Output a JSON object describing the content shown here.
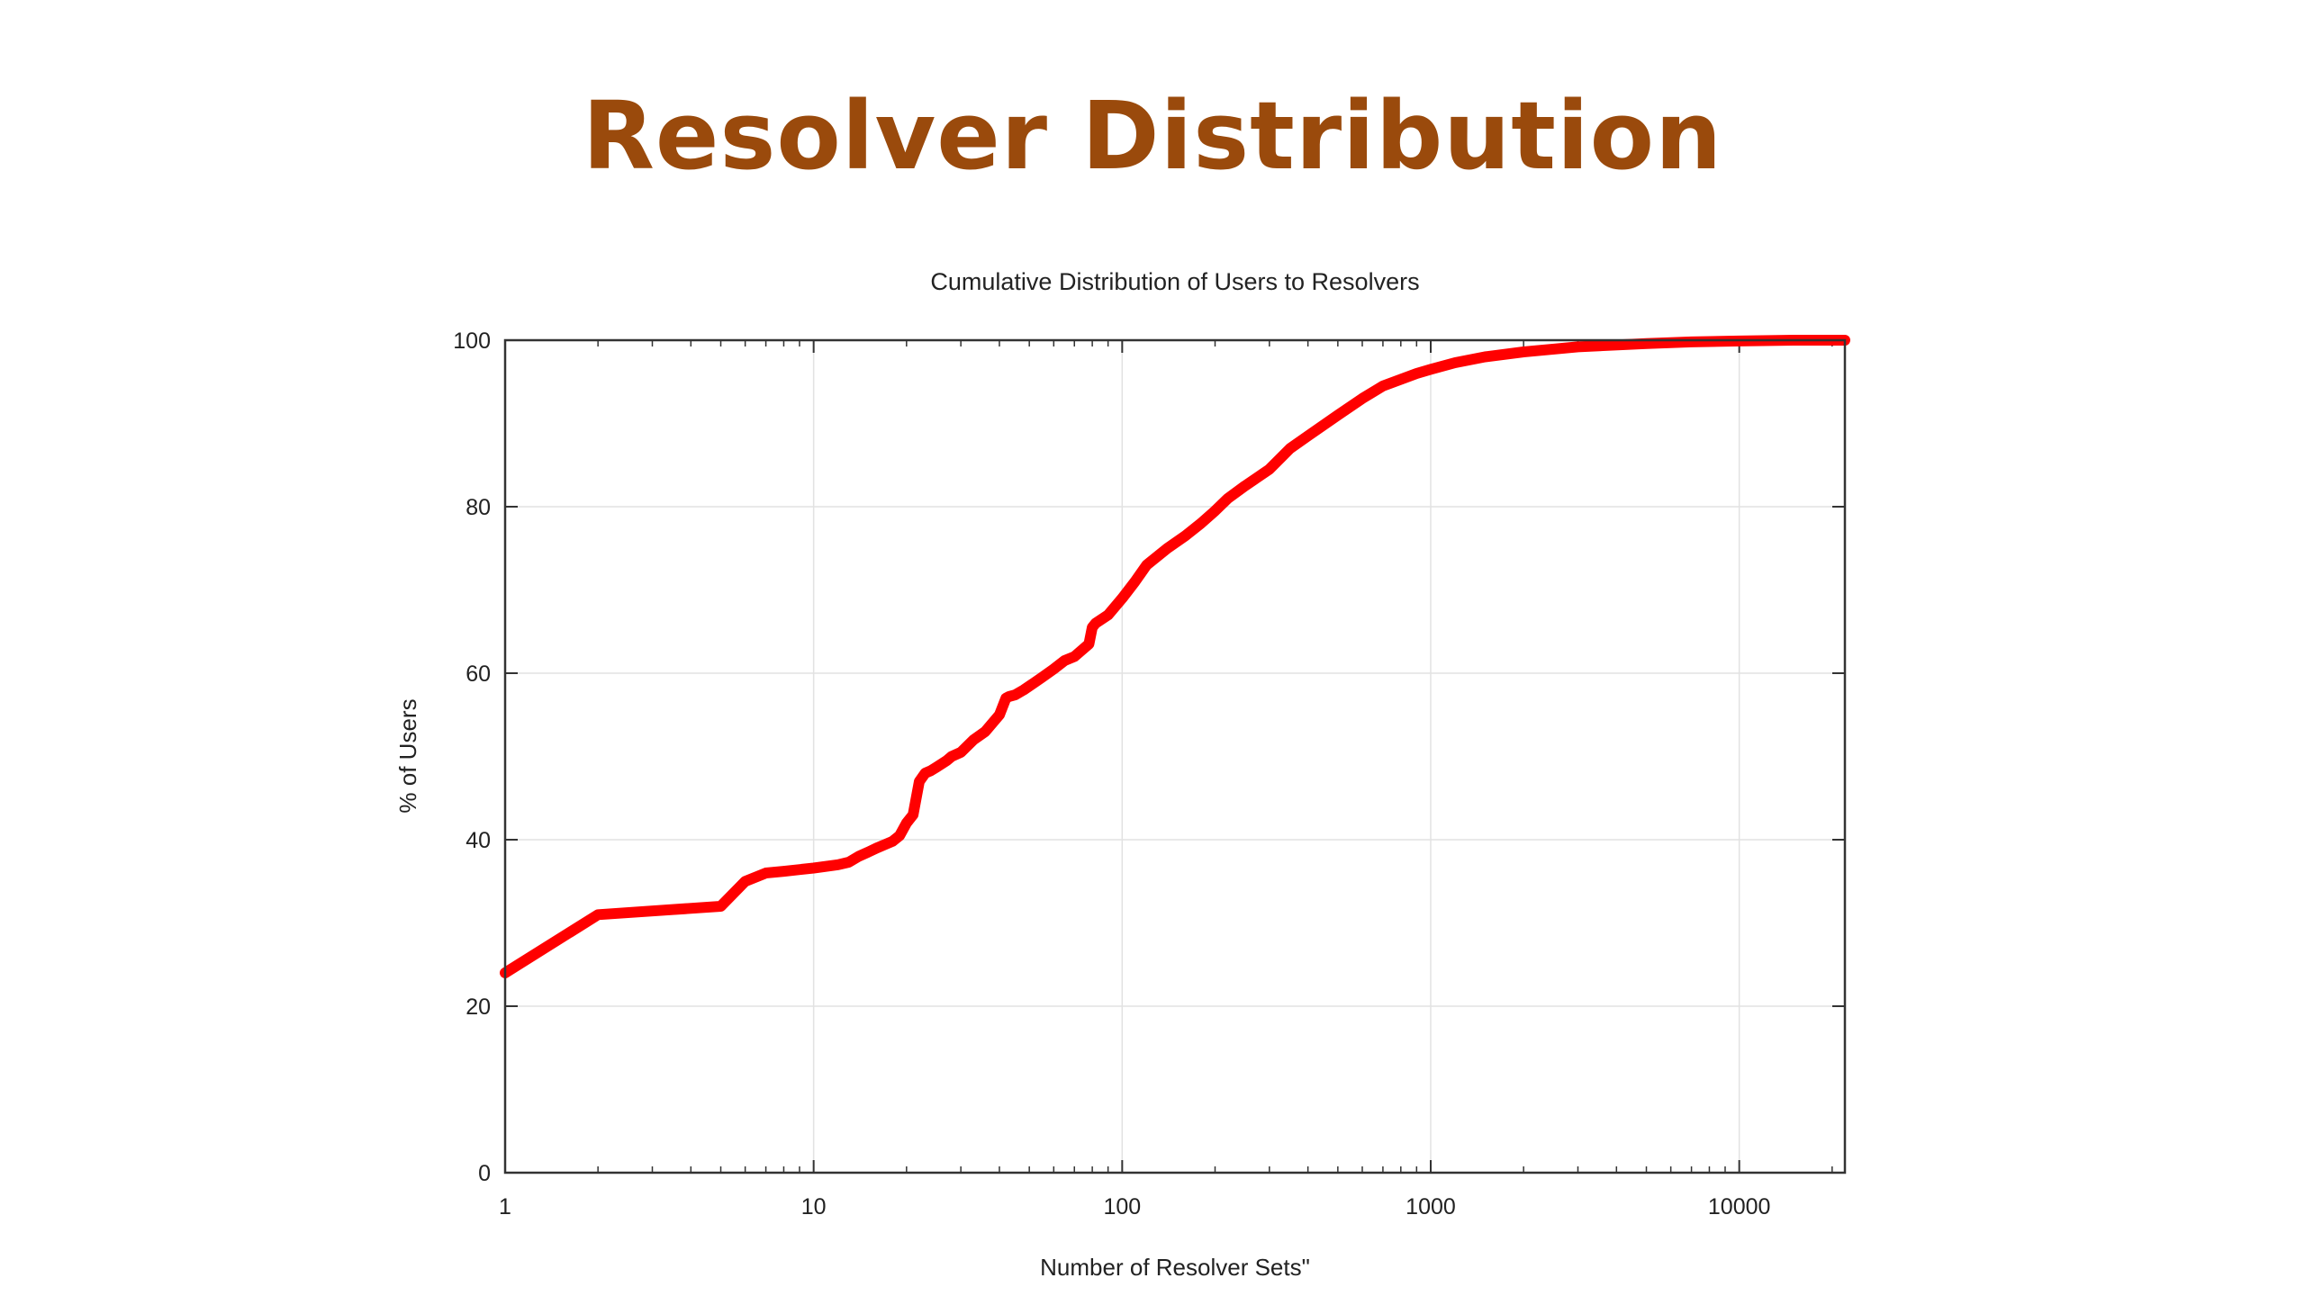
{
  "slide": {
    "title": "Resolver Distribution"
  },
  "chart_data": {
    "type": "line",
    "title": "Cumulative Distribution of Users to Resolvers",
    "xlabel": "Number of Resolver Sets\"",
    "ylabel": "% of Users",
    "xscale": "log",
    "xlim": [
      1,
      22000
    ],
    "ylim": [
      0,
      100
    ],
    "xticks": [
      1,
      10,
      100,
      1000,
      10000
    ],
    "xtick_labels": [
      "1",
      "10",
      "100",
      "1000",
      "10000"
    ],
    "yticks": [
      0,
      20,
      40,
      60,
      80,
      100
    ],
    "ytick_labels": [
      "0",
      "20",
      "40",
      "60",
      "80",
      "100"
    ],
    "grid": true,
    "legend": "none",
    "line_color": "#ff0000",
    "series": [
      {
        "x": [
          1,
          2,
          5,
          6,
          7,
          8,
          10,
          12,
          13,
          14,
          15,
          16,
          17,
          18,
          19,
          20,
          21,
          22,
          23,
          24,
          25,
          27,
          28,
          30,
          33,
          36,
          40,
          42,
          43,
          45,
          48,
          55,
          60,
          65,
          70,
          78,
          80,
          82,
          90,
          100,
          110,
          120,
          140,
          160,
          180,
          200,
          220,
          250,
          300,
          350,
          400,
          500,
          600,
          700,
          800,
          900,
          1000,
          1200,
          1500,
          2000,
          3000,
          5000,
          7000,
          10000,
          15000,
          22000
        ],
        "y": [
          24,
          31,
          32,
          35,
          36,
          36.2,
          36.6,
          37,
          37.3,
          38,
          38.5,
          39,
          39.4,
          39.8,
          40.5,
          42,
          43,
          47,
          48,
          48.3,
          48.7,
          49.5,
          50,
          50.5,
          52,
          53,
          55,
          57,
          57.2,
          57.4,
          58,
          59.5,
          60.5,
          61.5,
          62,
          63.5,
          65.5,
          66,
          67,
          69,
          71,
          73,
          75,
          76.5,
          78,
          79.5,
          81,
          82.5,
          84.5,
          87,
          88.5,
          91,
          93,
          94.5,
          95.3,
          96,
          96.5,
          97.3,
          98,
          98.6,
          99.2,
          99.6,
          99.8,
          99.9,
          100,
          100
        ]
      }
    ]
  }
}
